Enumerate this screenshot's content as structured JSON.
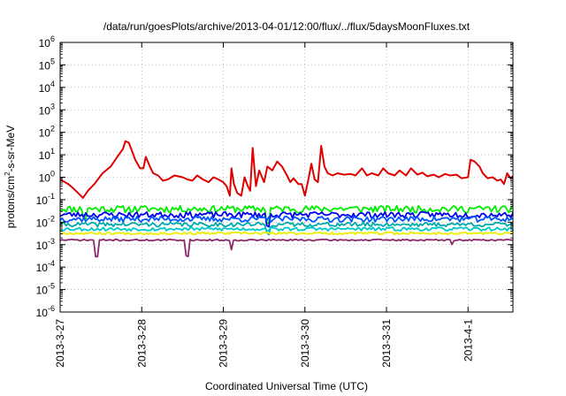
{
  "chart_data": {
    "type": "line",
    "title": "/data/run/goesPlots/archive/2013-04-01/12:00/flux/../flux/5daysMoonFluxes.txt",
    "xlabel": "Coordinated Universal Time (UTC)",
    "ylabel_base": "protons/cm",
    "ylabel_sup": "2",
    "ylabel_rest": "-s-sr-MeV",
    "x_ticks": [
      {
        "label": "2013-3-27",
        "day": 0
      },
      {
        "label": "2013-3-28",
        "day": 1
      },
      {
        "label": "2013-3-29",
        "day": 2
      },
      {
        "label": "2013-3-30",
        "day": 3
      },
      {
        "label": "2013-3-31",
        "day": 4
      },
      {
        "label": "2013-4-1",
        "day": 5
      }
    ],
    "x_range_days": [
      0,
      5.55
    ],
    "y_scale": "log",
    "y_exponent_range": [
      -6,
      6
    ],
    "y_tick_base": "10",
    "y_tick_exponents": [
      "-6",
      "-5",
      "-4",
      "-3",
      "-2",
      "-1",
      "0",
      "1",
      "2",
      "3",
      "4",
      "5",
      "6"
    ],
    "grid": true,
    "series": [
      {
        "color": "#e00000",
        "kind": "keypoints",
        "points": [
          [
            0.0,
            0.8
          ],
          [
            0.1,
            0.5
          ],
          [
            0.15,
            0.35
          ],
          [
            0.22,
            0.2
          ],
          [
            0.28,
            0.12
          ],
          [
            0.34,
            0.25
          ],
          [
            0.42,
            0.5
          ],
          [
            0.52,
            1.5
          ],
          [
            0.62,
            3
          ],
          [
            0.7,
            8
          ],
          [
            0.77,
            18
          ],
          [
            0.8,
            40
          ],
          [
            0.84,
            35
          ],
          [
            0.88,
            15
          ],
          [
            0.92,
            6
          ],
          [
            0.98,
            2.5
          ],
          [
            1.02,
            2.5
          ],
          [
            1.05,
            8
          ],
          [
            1.1,
            3
          ],
          [
            1.14,
            1.5
          ],
          [
            1.2,
            1.2
          ],
          [
            1.26,
            0.7
          ],
          [
            1.32,
            0.8
          ],
          [
            1.4,
            1.2
          ],
          [
            1.5,
            1.0
          ],
          [
            1.56,
            0.8
          ],
          [
            1.62,
            0.7
          ],
          [
            1.68,
            1.2
          ],
          [
            1.75,
            0.8
          ],
          [
            1.82,
            0.6
          ],
          [
            1.88,
            1.0
          ],
          [
            1.94,
            0.8
          ],
          [
            2.0,
            0.6
          ],
          [
            2.04,
            0.4
          ],
          [
            2.08,
            0.15
          ],
          [
            2.1,
            2.5
          ],
          [
            2.13,
            0.5
          ],
          [
            2.17,
            0.2
          ],
          [
            2.22,
            0.15
          ],
          [
            2.26,
            1.0
          ],
          [
            2.3,
            0.4
          ],
          [
            2.33,
            0.25
          ],
          [
            2.36,
            20
          ],
          [
            2.4,
            0.4
          ],
          [
            2.44,
            2.0
          ],
          [
            2.5,
            0.6
          ],
          [
            2.54,
            3.0
          ],
          [
            2.6,
            2.0
          ],
          [
            2.66,
            5
          ],
          [
            2.72,
            3
          ],
          [
            2.78,
            1.2
          ],
          [
            2.82,
            0.6
          ],
          [
            2.86,
            0.9
          ],
          [
            2.92,
            0.5
          ],
          [
            2.96,
            0.5
          ],
          [
            3.0,
            0.15
          ],
          [
            3.04,
            0.7
          ],
          [
            3.08,
            4
          ],
          [
            3.12,
            0.8
          ],
          [
            3.16,
            0.6
          ],
          [
            3.2,
            25
          ],
          [
            3.24,
            3
          ],
          [
            3.28,
            1.5
          ],
          [
            3.34,
            1.2
          ],
          [
            3.4,
            1.5
          ],
          [
            3.48,
            1.3
          ],
          [
            3.56,
            1.4
          ],
          [
            3.62,
            1.2
          ],
          [
            3.7,
            2.5
          ],
          [
            3.76,
            1.2
          ],
          [
            3.82,
            1.5
          ],
          [
            3.9,
            1.2
          ],
          [
            3.96,
            2.5
          ],
          [
            4.02,
            1.5
          ],
          [
            4.1,
            1.2
          ],
          [
            4.16,
            2.0
          ],
          [
            4.24,
            1.2
          ],
          [
            4.3,
            2.5
          ],
          [
            4.38,
            1.3
          ],
          [
            4.44,
            1.6
          ],
          [
            4.5,
            1.1
          ],
          [
            4.58,
            1.3
          ],
          [
            4.64,
            1.0
          ],
          [
            4.72,
            1.4
          ],
          [
            4.78,
            1.2
          ],
          [
            4.86,
            1.3
          ],
          [
            4.92,
            0.9
          ],
          [
            5.0,
            1.0
          ],
          [
            5.03,
            6
          ],
          [
            5.08,
            5
          ],
          [
            5.14,
            3
          ],
          [
            5.18,
            1.5
          ],
          [
            5.24,
            0.9
          ],
          [
            5.3,
            1.0
          ],
          [
            5.36,
            0.7
          ],
          [
            5.4,
            0.8
          ],
          [
            5.44,
            0.5
          ],
          [
            5.48,
            1.5
          ],
          [
            5.52,
            0.9
          ],
          [
            5.55,
            1.1
          ]
        ]
      },
      {
        "color": "#00ee00",
        "kind": "noise",
        "base": 0.04,
        "amp": 0.35,
        "seed": 11,
        "dips": [
          [
            0.3,
            0.4
          ],
          [
            2.55,
            0.25
          ]
        ]
      },
      {
        "color": "#0000ee",
        "kind": "noise",
        "base": 0.022,
        "amp": 0.3,
        "seed": 23,
        "dips": [
          [
            2.55,
            0.3
          ]
        ]
      },
      {
        "color": "#0055ff",
        "kind": "noise",
        "base": 0.014,
        "amp": 0.28,
        "seed": 37,
        "dips": []
      },
      {
        "color": "#00aaaa",
        "kind": "noise",
        "base": 0.008,
        "amp": 0.22,
        "seed": 41,
        "dips": [
          [
            2.55,
            0.4
          ]
        ]
      },
      {
        "color": "#00c8c8",
        "kind": "noise",
        "base": 0.005,
        "amp": 0.18,
        "seed": 53,
        "dips": []
      },
      {
        "color": "#eeee00",
        "kind": "noise",
        "base": 0.0032,
        "amp": 0.12,
        "seed": 67,
        "dips": []
      },
      {
        "color": "#8a2a6a",
        "kind": "noise",
        "base": 0.0016,
        "amp": 0.08,
        "seed": 71,
        "dips": [
          [
            0.45,
            0.18
          ],
          [
            1.55,
            0.2
          ],
          [
            2.1,
            0.35
          ],
          [
            4.8,
            0.6
          ]
        ]
      }
    ]
  }
}
